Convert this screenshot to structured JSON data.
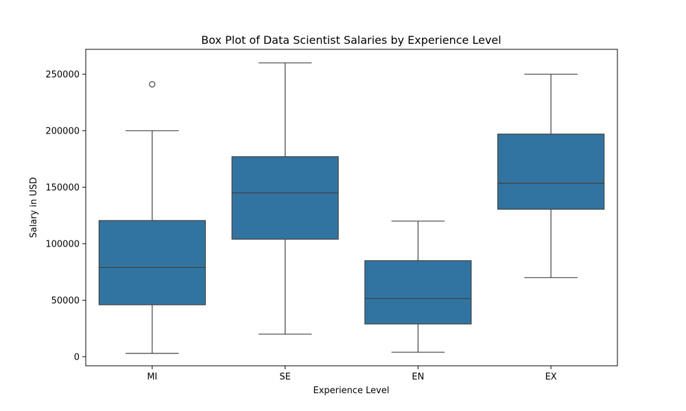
{
  "chart_data": {
    "type": "box",
    "title": "Box Plot of Data Scientist Salaries by Experience Level",
    "xlabel": "Experience Level",
    "ylabel": "Salary in USD",
    "ylim": [
      -8000,
      272000
    ],
    "yticks": [
      0,
      50000,
      100000,
      150000,
      200000,
      250000
    ],
    "grid": false,
    "categories": [
      "MI",
      "SE",
      "EN",
      "EX"
    ],
    "boxes": [
      {
        "category": "MI",
        "whisker_low": 3000,
        "q1": 46000,
        "median": 79000,
        "q3": 120500,
        "whisker_high": 200000,
        "outliers": [
          241000
        ]
      },
      {
        "category": "SE",
        "whisker_low": 20000,
        "q1": 104000,
        "median": 145000,
        "q3": 177000,
        "whisker_high": 260000,
        "outliers": []
      },
      {
        "category": "EN",
        "whisker_low": 4000,
        "q1": 29000,
        "median": 51500,
        "q3": 85000,
        "whisker_high": 120000,
        "outliers": []
      },
      {
        "category": "EX",
        "whisker_low": 70000,
        "q1": 130500,
        "median": 153500,
        "q3": 197000,
        "whisker_high": 250000,
        "outliers": []
      }
    ],
    "colors": {
      "box_fill": "#3274a1",
      "line": "#3f3f3f"
    }
  }
}
